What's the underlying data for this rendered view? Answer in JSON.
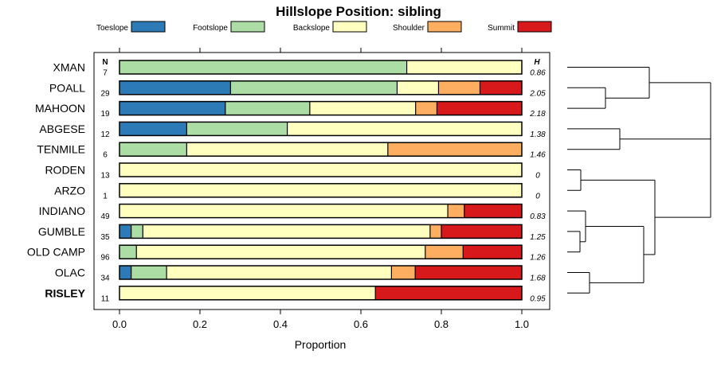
{
  "chart_data": {
    "type": "bar",
    "orientation": "horizontal-stacked-proportion",
    "title": "Hillslope Position: sibling",
    "xlabel": "Proportion",
    "xlim": [
      0,
      1
    ],
    "x_ticks": [
      "0.0",
      "0.2",
      "0.4",
      "0.6",
      "0.8",
      "1.0"
    ],
    "x_tick_values": [
      0,
      0.2,
      0.4,
      0.6,
      0.8,
      1.0
    ],
    "n_header": "N",
    "h_header": "H",
    "legend_placement": "top",
    "series": [
      {
        "name": "Toeslope",
        "color": "#2c7bb6"
      },
      {
        "name": "Footslope",
        "color": "#abdda4"
      },
      {
        "name": "Backslope",
        "color": "#ffffbf"
      },
      {
        "name": "Shoulder",
        "color": "#fdae61"
      },
      {
        "name": "Summit",
        "color": "#d7191c"
      }
    ],
    "rows": [
      {
        "label": "XMAN",
        "n": "7",
        "h": "0.86",
        "bold": false,
        "values": [
          0,
          0.714,
          0.286,
          0,
          0
        ]
      },
      {
        "label": "POALL",
        "n": "29",
        "h": "2.05",
        "bold": false,
        "values": [
          0.276,
          0.414,
          0.103,
          0.103,
          0.104
        ]
      },
      {
        "label": "MAHOON",
        "n": "19",
        "h": "2.18",
        "bold": false,
        "values": [
          0.263,
          0.21,
          0.263,
          0.053,
          0.211
        ]
      },
      {
        "label": "ABGESE",
        "n": "12",
        "h": "1.38",
        "bold": false,
        "values": [
          0.167,
          0.25,
          0.583,
          0,
          0
        ]
      },
      {
        "label": "TENMILE",
        "n": "6",
        "h": "1.46",
        "bold": false,
        "values": [
          0,
          0.167,
          0.5,
          0.333,
          0
        ]
      },
      {
        "label": "RODEN",
        "n": "13",
        "h": "0",
        "bold": false,
        "values": [
          0,
          0,
          1,
          0,
          0
        ]
      },
      {
        "label": "ARZO",
        "n": "1",
        "h": "0",
        "bold": false,
        "values": [
          0,
          0,
          1,
          0,
          0
        ]
      },
      {
        "label": "INDIANO",
        "n": "49",
        "h": "0.83",
        "bold": false,
        "values": [
          0,
          0,
          0.816,
          0.041,
          0.143
        ]
      },
      {
        "label": "GUMBLE",
        "n": "35",
        "h": "1.25",
        "bold": false,
        "values": [
          0.029,
          0.029,
          0.714,
          0.028,
          0.2
        ]
      },
      {
        "label": "OLD CAMP",
        "n": "96",
        "h": "1.26",
        "bold": false,
        "values": [
          0,
          0.042,
          0.718,
          0.094,
          0.146
        ]
      },
      {
        "label": "OLAC",
        "n": "34",
        "h": "1.68",
        "bold": false,
        "values": [
          0.029,
          0.088,
          0.559,
          0.059,
          0.265
        ]
      },
      {
        "label": "RISLEY",
        "n": "11",
        "h": "0.95",
        "bold": true,
        "values": [
          0,
          0,
          0.636,
          0,
          0.364
        ]
      }
    ],
    "dendrogram": {
      "tree": [
        [
          [
            0,
            [
              1,
              2
            ]
          ],
          [
            3,
            4
          ]
        ],
        [
          [
            [
              5,
              6
            ],
            [
              [
                7,
                [
                  8,
                  9
                ]
              ],
              [
                10,
                11
              ]
            ]
          ]
        ]
      ]
    }
  }
}
